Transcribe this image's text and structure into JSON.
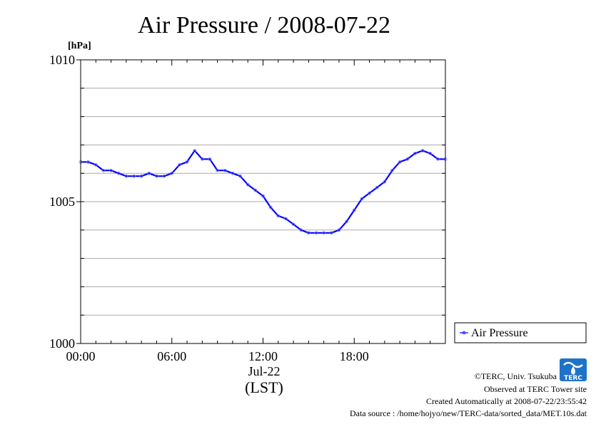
{
  "chart_data": {
    "type": "line",
    "title": "Air Pressure / 2008-07-22",
    "yunit": "[hPa]",
    "ylim": [
      1000,
      1010
    ],
    "ytick_values": [
      1000,
      1005,
      1010
    ],
    "ytick_labels": [
      "1000",
      "1005",
      "1010"
    ],
    "xlim": [
      0,
      24
    ],
    "xtick_values": [
      0,
      6,
      12,
      18
    ],
    "xtick_labels": [
      "00:00",
      "06:00",
      "12:00",
      "18:00"
    ],
    "xdate_label": "Jul-22",
    "xlabel": "(LST)",
    "grid": true,
    "legend_position": "right",
    "series": [
      {
        "name": "Air Pressure",
        "color": "#0000ff",
        "x": [
          0,
          0.5,
          1,
          1.5,
          2,
          2.5,
          3,
          3.5,
          4,
          4.5,
          5,
          5.5,
          6,
          6.5,
          7,
          7.5,
          8,
          8.5,
          9,
          9.5,
          10,
          10.5,
          11,
          11.5,
          12,
          12.5,
          13,
          13.5,
          14,
          14.5,
          15,
          15.5,
          16,
          16.5,
          17,
          17.5,
          18,
          18.5,
          19,
          19.5,
          20,
          20.5,
          21,
          21.5,
          22,
          22.5,
          23,
          23.5,
          24
        ],
        "values": [
          1006.4,
          1006.4,
          1006.3,
          1006.1,
          1006.1,
          1006.0,
          1005.9,
          1005.9,
          1005.9,
          1006.0,
          1005.9,
          1005.9,
          1006.0,
          1006.3,
          1006.4,
          1006.8,
          1006.5,
          1006.5,
          1006.1,
          1006.1,
          1006.0,
          1005.9,
          1005.6,
          1005.4,
          1005.2,
          1004.8,
          1004.5,
          1004.4,
          1004.2,
          1004.0,
          1003.9,
          1003.9,
          1003.9,
          1003.9,
          1004.0,
          1004.3,
          1004.7,
          1005.1,
          1005.3,
          1005.5,
          1005.7,
          1006.1,
          1006.4,
          1006.5,
          1006.7,
          1006.8,
          1006.7,
          1006.5,
          1006.5
        ]
      }
    ]
  },
  "credits": {
    "copyright": "©TERC, Univ. Tsukuba",
    "observed": "Observed at TERC Tower site",
    "created": "Created Automatically at 2008-07-22/23:55:42",
    "source": "Data source : /home/hojyo/new/TERC-data/sorted_data/MET.10s.dat",
    "logo_text": "TERC"
  }
}
